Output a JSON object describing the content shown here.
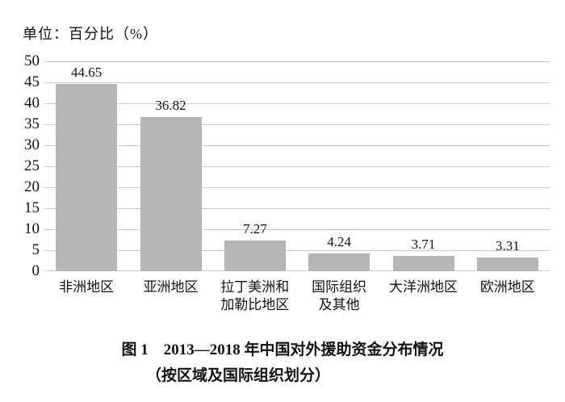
{
  "unit_label": "单位：百分比（%）",
  "chart_data": {
    "type": "bar",
    "title": "图1 2013—2018年中国对外援助资金分布情况（按区域及国际组织划分）",
    "categories": [
      "非洲地区",
      "亚洲地区",
      "拉丁美洲和\n加勒比地区",
      "国际组织\n及其他",
      "大洋洲地区",
      "欧洲地区"
    ],
    "values": [
      44.65,
      36.82,
      7.27,
      4.24,
      3.71,
      3.31
    ],
    "value_labels": [
      "44.65",
      "36.82",
      "7.27",
      "4.24",
      "3.71",
      "3.31"
    ],
    "ylabel": "单位：百分比（%）",
    "xlabel": "",
    "y_ticks": [
      0,
      5,
      10,
      15,
      20,
      25,
      30,
      35,
      40,
      45,
      50
    ],
    "ylim": [
      0,
      50
    ],
    "grid": true,
    "legend": false,
    "bar_color": "#b5b5b5",
    "grid_color": "#c9c9c9"
  },
  "caption": {
    "line1": "图 1　2013—2018 年中国对外援助资金分布情况",
    "line2": "（按区域及国际组织划分）"
  }
}
